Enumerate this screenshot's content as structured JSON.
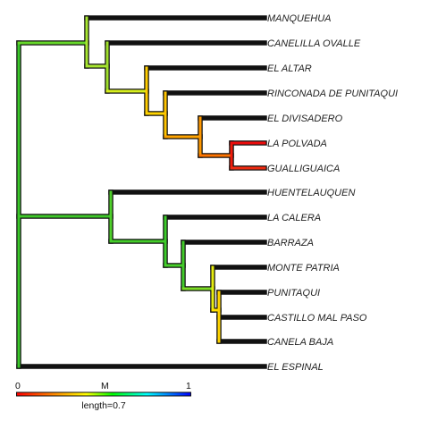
{
  "tree": {
    "tips": [
      "MANQUEHUA",
      "CANELILLA OVALLE",
      "EL ALTAR",
      "RINCONADA DE PUNITAQUI",
      "EL DIVISADERO",
      "LA POLVADA",
      "GUALLIGUAICA",
      "HUENTELAUQUEN",
      "LA CALERA",
      "BARRAZA",
      "MONTE PATRIA",
      "PUNITAQUI",
      "CASTILLO MAL PASO",
      "CANELA BAJA",
      "EL ESPINAL"
    ]
  },
  "legend": {
    "tick_min": "0",
    "tick_mid": "M",
    "tick_max": "1",
    "scale_label": "length=0.7",
    "gradient_colors": [
      "#ff0000",
      "#ff8000",
      "#ffff00",
      "#00ff00",
      "#00ffff",
      "#0000ff"
    ]
  }
}
